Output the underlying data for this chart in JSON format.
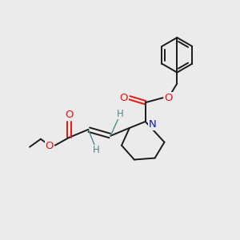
{
  "background_color": "#ebebeb",
  "bond_color": "#1a1a1a",
  "atom_colors": {
    "O": "#ee1111",
    "N": "#1111cc",
    "H": "#4a8a8a",
    "C": "#1a1a1a"
  },
  "figsize": [
    3.0,
    3.0
  ],
  "dpi": 100
}
